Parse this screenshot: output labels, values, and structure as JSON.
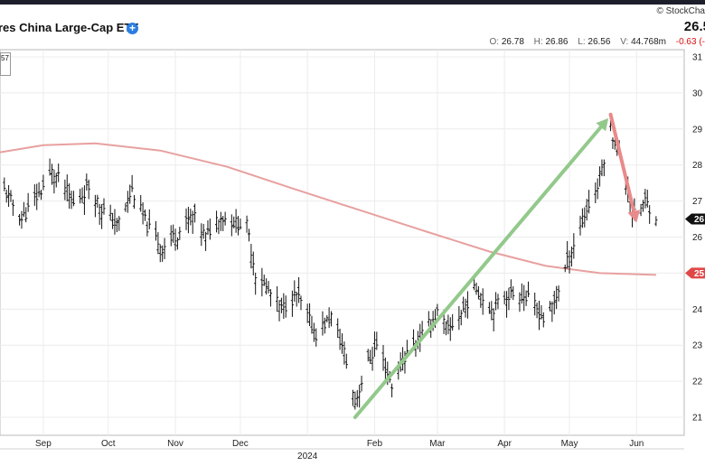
{
  "header": {
    "title": "res China Large-Cap ETF",
    "brand": "© StockCha",
    "price": "26.5",
    "ohlc": {
      "o_label": "O:",
      "o": "26.78",
      "h_label": "H:",
      "h": "26.86",
      "l_label": "L:",
      "l": "26.56",
      "v_label": "V:",
      "v": "44.768m",
      "change": "-0.63 (-"
    }
  },
  "legend_box": {
    "line1": "57",
    "line2": ""
  },
  "colors": {
    "price_bars": "#111111",
    "moving_average": "#e8a0a0",
    "up_arrow": "#93c98b",
    "down_arrow": "#e98a8a",
    "last_price_tag": "#111111",
    "ma_tag": "#e04848"
  },
  "chart_data": {
    "type": "ohlc",
    "title": "",
    "xlabel": "",
    "ylabel": "",
    "ylim": [
      20.5,
      31.2
    ],
    "y_ticks": [
      "31",
      "30",
      "29",
      "28",
      "27",
      "26",
      "25",
      "24",
      "23",
      "22",
      "21"
    ],
    "x_ticks": [
      {
        "label": "Sep",
        "date": "2023-09-01"
      },
      {
        "label": "Oct",
        "date": "2023-10-01"
      },
      {
        "label": "Nov",
        "date": "2023-11-01"
      },
      {
        "label": "Dec",
        "date": "2023-12-01"
      },
      {
        "label": "2024",
        "date": "2024-01-01"
      },
      {
        "label": "Feb",
        "date": "2024-02-01"
      },
      {
        "label": "Mar",
        "date": "2024-03-01"
      },
      {
        "label": "Apr",
        "date": "2024-04-01"
      },
      {
        "label": "May",
        "date": "2024-05-01"
      },
      {
        "label": "Jun",
        "date": "2024-06-01"
      }
    ],
    "x_range": [
      "2023-08-12",
      "2024-06-23"
    ],
    "price_keypoints": [
      [
        "2023-08-14",
        27.3
      ],
      [
        "2023-08-22",
        26.5
      ],
      [
        "2023-08-30",
        27.2
      ],
      [
        "2023-09-05",
        27.8
      ],
      [
        "2023-09-10",
        27.5
      ],
      [
        "2023-09-15",
        26.9
      ],
      [
        "2023-09-22",
        27.4
      ],
      [
        "2023-09-28",
        26.8
      ],
      [
        "2023-10-05",
        26.3
      ],
      [
        "2023-10-12",
        27.3
      ],
      [
        "2023-10-19",
        26.3
      ],
      [
        "2023-10-26",
        25.7
      ],
      [
        "2023-11-02",
        26.1
      ],
      [
        "2023-11-09",
        26.6
      ],
      [
        "2023-11-15",
        26.0
      ],
      [
        "2023-11-21",
        26.6
      ],
      [
        "2023-11-28",
        26.4
      ],
      [
        "2023-12-04",
        26.3
      ],
      [
        "2023-12-08",
        25.0
      ],
      [
        "2023-12-14",
        24.5
      ],
      [
        "2023-12-20",
        24.0
      ],
      [
        "2023-12-27",
        24.4
      ],
      [
        "2024-01-05",
        23.3
      ],
      [
        "2024-01-12",
        23.8
      ],
      [
        "2024-01-18",
        22.8
      ],
      [
        "2024-01-23",
        21.4
      ],
      [
        "2024-01-28",
        22.4
      ],
      [
        "2024-02-02",
        23.0
      ],
      [
        "2024-02-09",
        21.9
      ],
      [
        "2024-02-16",
        22.8
      ],
      [
        "2024-02-22",
        23.2
      ],
      [
        "2024-03-01",
        23.9
      ],
      [
        "2024-03-06",
        23.4
      ],
      [
        "2024-03-12",
        23.9
      ],
      [
        "2024-03-19",
        24.6
      ],
      [
        "2024-03-26",
        24.0
      ],
      [
        "2024-04-02",
        24.4
      ],
      [
        "2024-04-09",
        24.4
      ],
      [
        "2024-04-15",
        24.1
      ],
      [
        "2024-04-19",
        23.7
      ],
      [
        "2024-04-24",
        24.2
      ],
      [
        "2024-04-30",
        25.3
      ],
      [
        "2024-05-06",
        26.3
      ],
      [
        "2024-05-10",
        26.9
      ],
      [
        "2024-05-14",
        27.4
      ],
      [
        "2024-05-17",
        28.2
      ],
      [
        "2024-05-20",
        29.0
      ],
      [
        "2024-05-23",
        28.5
      ],
      [
        "2024-05-28",
        27.3
      ],
      [
        "2024-05-31",
        26.6
      ],
      [
        "2024-06-05",
        27.0
      ],
      [
        "2024-06-10",
        26.6
      ]
    ],
    "moving_average": [
      [
        "2023-08-12",
        28.35
      ],
      [
        "2023-09-01",
        28.55
      ],
      [
        "2023-09-25",
        28.6
      ],
      [
        "2023-10-25",
        28.4
      ],
      [
        "2023-11-25",
        27.95
      ],
      [
        "2023-12-25",
        27.35
      ],
      [
        "2024-01-25",
        26.75
      ],
      [
        "2024-02-25",
        26.15
      ],
      [
        "2024-03-25",
        25.6
      ],
      [
        "2024-04-20",
        25.2
      ],
      [
        "2024-05-15",
        25.0
      ],
      [
        "2024-06-10",
        24.95
      ]
    ],
    "annotations": [
      {
        "type": "arrow",
        "from": [
          "2024-01-23",
          21.0
        ],
        "to": [
          "2024-05-19",
          29.3
        ],
        "color": "up_arrow"
      },
      {
        "type": "arrow",
        "from": [
          "2024-05-20",
          29.4
        ],
        "to": [
          "2024-06-01",
          26.4
        ],
        "color": "down_arrow"
      }
    ],
    "last_price_tag": {
      "value": 26.5,
      "label": "26"
    },
    "ma_tag": {
      "value": 25.0,
      "label": "25"
    }
  }
}
